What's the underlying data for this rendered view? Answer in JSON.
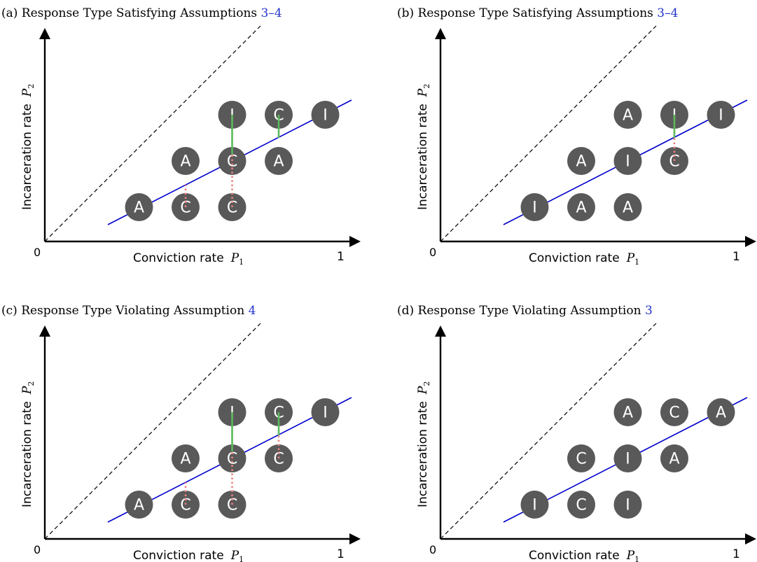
{
  "panels": [
    {
      "prefix": "(a) Response Type Satisfying Assumptions ",
      "ref": "3–4",
      "origin_label": "0",
      "one_label": "1",
      "xlabel": "Conviction rate",
      "xsym": "P",
      "xsub": "1",
      "ylabel": "Incarceration rate",
      "ysym": "P",
      "ysub": "2",
      "nodes": [
        {
          "l": "A",
          "c": 1,
          "r": 0
        },
        {
          "l": "C",
          "c": 2,
          "r": 0
        },
        {
          "l": "C",
          "c": 3,
          "r": 0
        },
        {
          "l": "A",
          "c": 2,
          "r": 1
        },
        {
          "l": "C",
          "c": 3,
          "r": 1
        },
        {
          "l": "A",
          "c": 4,
          "r": 1
        },
        {
          "l": "I",
          "c": 3,
          "r": 2
        },
        {
          "l": "C",
          "c": 4,
          "r": 2
        },
        {
          "l": "I",
          "c": 5,
          "r": 2
        }
      ],
      "segments": [
        {
          "c": 2,
          "from": 0,
          "to": 0.48,
          "kind": "red"
        },
        {
          "c": 3,
          "from": 0,
          "to": 1.15,
          "kind": "red"
        },
        {
          "c": 3,
          "from": 1.15,
          "to": 2,
          "kind": "green"
        },
        {
          "c": 4,
          "from": 1.5,
          "to": 2,
          "kind": "green"
        }
      ]
    },
    {
      "prefix": "(b) Response Type Satisfying Assumptions ",
      "ref": "3–4",
      "origin_label": "0",
      "one_label": "1",
      "xlabel": "Conviction rate",
      "xsym": "P",
      "xsub": "1",
      "ylabel": "Incarceration rate",
      "ysym": "P",
      "ysub": "2",
      "nodes": [
        {
          "l": "I",
          "c": 1,
          "r": 0
        },
        {
          "l": "A",
          "c": 2,
          "r": 0
        },
        {
          "l": "A",
          "c": 3,
          "r": 0
        },
        {
          "l": "A",
          "c": 2,
          "r": 1
        },
        {
          "l": "I",
          "c": 3,
          "r": 1
        },
        {
          "l": "C",
          "c": 4,
          "r": 1
        },
        {
          "l": "A",
          "c": 3,
          "r": 2
        },
        {
          "l": "I",
          "c": 4,
          "r": 2
        },
        {
          "l": "I",
          "c": 5,
          "r": 2
        }
      ],
      "segments": [
        {
          "c": 4,
          "from": 1,
          "to": 1.5,
          "kind": "red"
        },
        {
          "c": 4,
          "from": 1.5,
          "to": 2,
          "kind": "green"
        }
      ]
    },
    {
      "prefix": "(c) Response Type Violating Assumption ",
      "ref": "4",
      "origin_label": "0",
      "one_label": "1",
      "xlabel": "Conviction rate",
      "xsym": "P",
      "xsub": "1",
      "ylabel": "Incarceration rate",
      "ysym": "P",
      "ysub": "2",
      "nodes": [
        {
          "l": "A",
          "c": 1,
          "r": 0
        },
        {
          "l": "C",
          "c": 2,
          "r": 0
        },
        {
          "l": "C",
          "c": 3,
          "r": 0
        },
        {
          "l": "A",
          "c": 2,
          "r": 1
        },
        {
          "l": "C",
          "c": 3,
          "r": 1
        },
        {
          "l": "C",
          "c": 4,
          "r": 1
        },
        {
          "l": "I",
          "c": 3,
          "r": 2
        },
        {
          "l": "C",
          "c": 4,
          "r": 2
        },
        {
          "l": "I",
          "c": 5,
          "r": 2
        }
      ],
      "segments": [
        {
          "c": 2,
          "from": 0,
          "to": 0.48,
          "kind": "red"
        },
        {
          "c": 3,
          "from": 0,
          "to": 1.15,
          "kind": "red"
        },
        {
          "c": 3,
          "from": 1.15,
          "to": 2,
          "kind": "green"
        },
        {
          "c": 4,
          "from": 1,
          "to": 1.5,
          "kind": "red"
        },
        {
          "c": 4,
          "from": 1.5,
          "to": 2,
          "kind": "green"
        }
      ]
    },
    {
      "prefix": "(d) Response Type Violating Assumption ",
      "ref": "3",
      "origin_label": "0",
      "one_label": "1",
      "xlabel": "Conviction rate",
      "xsym": "P",
      "xsub": "1",
      "ylabel": "Incarceration rate",
      "ysym": "P",
      "ysub": "2",
      "nodes": [
        {
          "l": "I",
          "c": 1,
          "r": 0
        },
        {
          "l": "C",
          "c": 2,
          "r": 0
        },
        {
          "l": "I",
          "c": 3,
          "r": 0
        },
        {
          "l": "C",
          "c": 2,
          "r": 1
        },
        {
          "l": "I",
          "c": 3,
          "r": 1
        },
        {
          "l": "A",
          "c": 4,
          "r": 1
        },
        {
          "l": "A",
          "c": 3,
          "r": 2
        },
        {
          "l": "C",
          "c": 4,
          "r": 2
        },
        {
          "l": "A",
          "c": 5,
          "r": 2
        }
      ],
      "segments": []
    }
  ],
  "colors": {
    "node": "#595959",
    "node_text": "#ffffff",
    "fit_line": "#0000cc",
    "green": "#5cb85c",
    "red": "#f08080",
    "ref_link": "#2233cc",
    "axis": "#000000"
  }
}
